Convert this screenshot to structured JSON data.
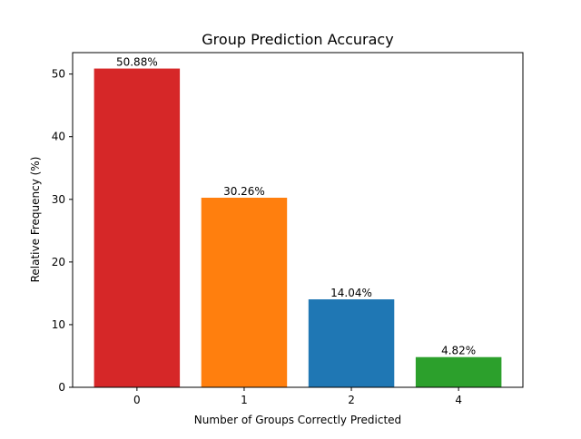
{
  "chart_data": {
    "type": "bar",
    "title": "Group Prediction Accuracy",
    "xlabel": "Number of Groups Correctly Predicted",
    "ylabel": "Relative Frequency (%)",
    "categories": [
      "0",
      "1",
      "2",
      "4"
    ],
    "values": [
      50.88,
      30.26,
      14.04,
      4.82
    ],
    "data_labels": [
      "50.88%",
      "30.26%",
      "14.04%",
      "4.82%"
    ],
    "colors": [
      "#d62728",
      "#ff7f0e",
      "#1f77b4",
      "#2ca02c"
    ],
    "ylim": [
      0,
      53.424
    ],
    "yticks": [
      0,
      10,
      20,
      30,
      40,
      50
    ],
    "grid": false,
    "legend": "none"
  }
}
